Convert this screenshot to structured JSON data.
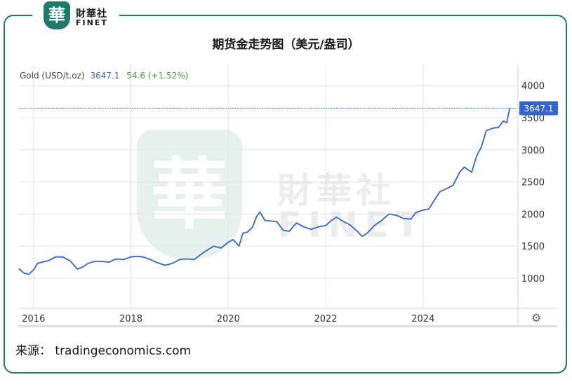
{
  "brand": {
    "emblem_glyph": "華",
    "name_cn": "財華社",
    "name_en": "FINET"
  },
  "chart_title": "期货金走势图（美元/盎司）",
  "legend": {
    "name": "Gold (USD/t.oz)",
    "value": "3647.1",
    "change": "54.6 (+1.52%)"
  },
  "price_label": "3647.1",
  "source_label": "来源： tradingeconomics.com",
  "colors": {
    "line": "#3366cc",
    "frame": "#1f7a6b",
    "value": "#3a66cc",
    "change": "#3aa33a",
    "price_label_bg": "#3366cc"
  },
  "icons": {
    "settings": "gear-icon"
  },
  "chart_data": {
    "type": "line",
    "title": "期货金走势图（美元/盎司）",
    "xlabel": "",
    "ylabel": "",
    "x_ticks": [
      "2016",
      "2018",
      "2020",
      "2022",
      "2024"
    ],
    "y_ticks": [
      1000,
      1500,
      2000,
      2500,
      3000,
      3500,
      4000
    ],
    "ylim": [
      530,
      4330
    ],
    "xlim": [
      2015.7,
      2025.95
    ],
    "grid": true,
    "last_value": 3647.1,
    "series": [
      {
        "name": "Gold (USD/t.oz)",
        "x": [
          2015.7,
          2015.8,
          2015.9,
          2016.0,
          2016.08,
          2016.17,
          2016.3,
          2016.45,
          2016.6,
          2016.75,
          2016.9,
          2017.0,
          2017.12,
          2017.25,
          2017.4,
          2017.55,
          2017.7,
          2017.85,
          2018.0,
          2018.12,
          2018.25,
          2018.4,
          2018.55,
          2018.7,
          2018.85,
          2019.0,
          2019.15,
          2019.3,
          2019.4,
          2019.55,
          2019.7,
          2019.85,
          2020.0,
          2020.1,
          2020.22,
          2020.3,
          2020.4,
          2020.5,
          2020.58,
          2020.65,
          2020.75,
          2020.88,
          2021.0,
          2021.12,
          2021.25,
          2021.4,
          2021.55,
          2021.7,
          2021.85,
          2022.0,
          2022.12,
          2022.22,
          2022.35,
          2022.5,
          2022.65,
          2022.75,
          2022.85,
          2023.0,
          2023.15,
          2023.3,
          2023.45,
          2023.6,
          2023.75,
          2023.85,
          2024.0,
          2024.12,
          2024.22,
          2024.35,
          2024.5,
          2024.62,
          2024.75,
          2024.85,
          2025.0,
          2025.1,
          2025.2,
          2025.3,
          2025.45,
          2025.55,
          2025.65,
          2025.72,
          2025.78
        ],
        "y": [
          1150,
          1080,
          1060,
          1130,
          1230,
          1250,
          1270,
          1330,
          1330,
          1270,
          1140,
          1170,
          1230,
          1260,
          1260,
          1250,
          1300,
          1290,
          1330,
          1340,
          1330,
          1290,
          1240,
          1200,
          1230,
          1290,
          1300,
          1290,
          1350,
          1430,
          1500,
          1470,
          1560,
          1600,
          1500,
          1700,
          1720,
          1800,
          1960,
          2030,
          1900,
          1890,
          1880,
          1750,
          1730,
          1860,
          1800,
          1760,
          1800,
          1820,
          1900,
          1950,
          1890,
          1830,
          1730,
          1650,
          1700,
          1820,
          1900,
          2000,
          1980,
          1930,
          1920,
          2020,
          2060,
          2080,
          2200,
          2350,
          2400,
          2450,
          2650,
          2730,
          2650,
          2900,
          3050,
          3300,
          3340,
          3350,
          3450,
          3420,
          3647.1
        ]
      }
    ]
  }
}
